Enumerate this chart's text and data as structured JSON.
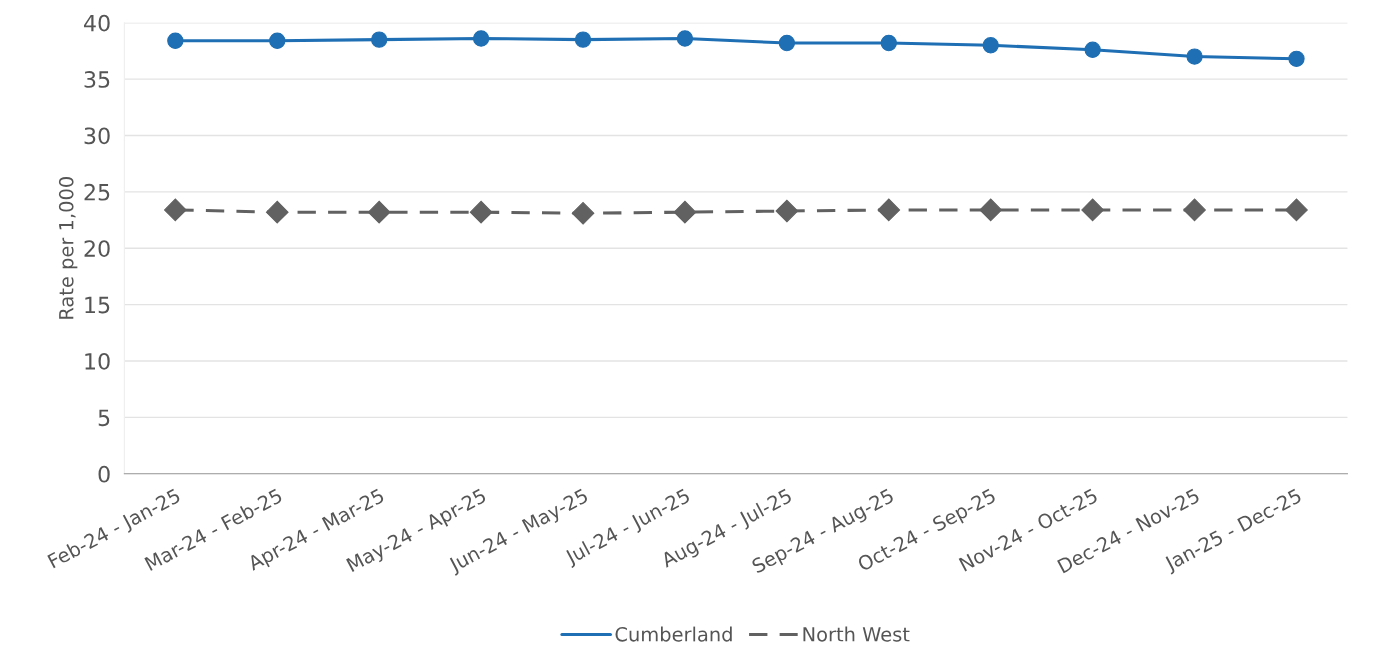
{
  "chart_data": {
    "type": "line",
    "ylabel": "Rate per 1,000",
    "categories": [
      "Feb-24 - Jan-25",
      "Mar-24 - Feb-25",
      "Apr-24 - Mar-25",
      "May-24 - Apr-25",
      "Jun-24 - May-25",
      "Jul-24 - Jun-25",
      "Aug-24 - Jul-25",
      "Sep-24 - Aug-25",
      "Oct-24 - Sep-25",
      "Nov-24 - Oct-25",
      "Dec-24 - Nov-25",
      "Jan-25 - Dec-25"
    ],
    "series": [
      {
        "name": "Cumberland",
        "color": "#1f6fb4",
        "marker": "circle",
        "line_style": "solid",
        "values": [
          38.4,
          38.4,
          38.5,
          38.6,
          38.5,
          38.6,
          38.2,
          38.2,
          38.0,
          37.6,
          37.0,
          36.8
        ]
      },
      {
        "name": "North West",
        "color": "#616161",
        "marker": "diamond",
        "line_style": "dashed",
        "values": [
          23.4,
          23.2,
          23.2,
          23.2,
          23.1,
          23.2,
          23.3,
          23.4,
          23.4,
          23.4,
          23.4,
          23.4
        ]
      }
    ],
    "ylim": [
      0,
      40
    ],
    "yticks": [
      0,
      5,
      10,
      15,
      20,
      25,
      30,
      35,
      40
    ],
    "grid": "y",
    "legend": "bottom"
  }
}
